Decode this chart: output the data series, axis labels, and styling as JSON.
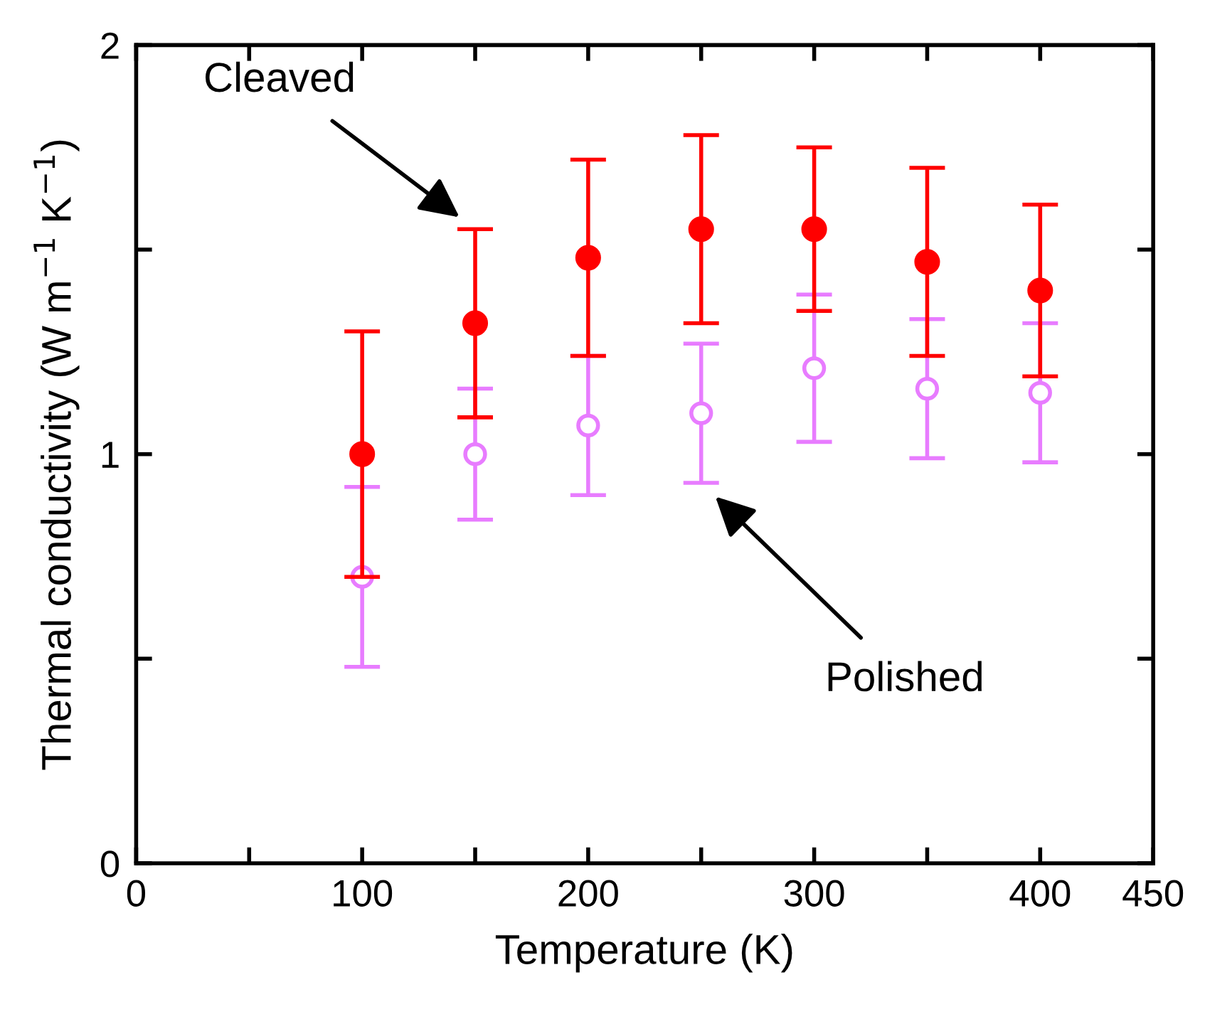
{
  "chart_data": {
    "type": "scatter",
    "xlabel": "Temperature (K)",
    "ylabel": "Thermal conductivity (W m$^{−1}$ K$^{−1}$)",
    "xlim": [
      0,
      450
    ],
    "ylim": [
      0,
      2
    ],
    "xticks": [
      0,
      {
        "value": 50,
        "label": null
      },
      100,
      {
        "value": 150,
        "label": null
      },
      200,
      {
        "value": 250,
        "label": null
      },
      300,
      {
        "value": 350,
        "label": null
      },
      400,
      450
    ],
    "yticks": [
      0,
      {
        "value": 0.5,
        "label": null
      },
      1,
      {
        "value": 1.5,
        "label": null
      },
      2
    ],
    "grid": false,
    "legend": false,
    "series": [
      {
        "color": "#ff0000",
        "marker": "circle",
        "x": [
          100,
          150,
          200,
          250,
          300,
          350,
          400
        ],
        "values": [
          1.0,
          1.32,
          1.48,
          1.55,
          1.55,
          1.47,
          1.4
        ],
        "errors": [
          [
            0.7,
            1.3
          ],
          [
            1.09,
            1.55
          ],
          [
            1.24,
            1.72
          ],
          [
            1.32,
            1.78
          ],
          [
            1.35,
            1.75
          ],
          [
            1.24,
            1.7
          ],
          [
            1.19,
            1.61
          ]
        ]
      },
      {
        "color": "#e87cff",
        "marker": "circle",
        "x": [
          100,
          150,
          200,
          250,
          300,
          350,
          400
        ],
        "values": [
          0.7,
          1.0,
          1.07,
          1.1,
          1.21,
          1.16,
          1.15
        ],
        "errors": [
          [
            0.48,
            0.92
          ],
          [
            0.84,
            1.16
          ],
          [
            0.9,
            1.24
          ],
          [
            0.93,
            1.27
          ],
          [
            1.03,
            1.39
          ],
          [
            0.99,
            1.33
          ],
          [
            0.98,
            1.32
          ]
        ]
      }
    ],
    "annotations": [
      "Cleaved",
      "Polished"
    ]
  }
}
